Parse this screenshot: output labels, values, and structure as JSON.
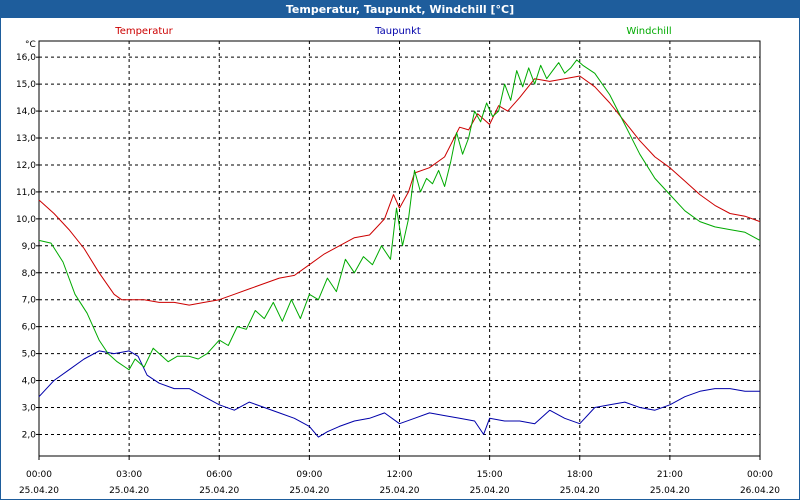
{
  "chart_data": {
    "type": "line",
    "title": "Temperatur, Taupunkt, Windchill [°C]",
    "ylabel": "°C",
    "ylim": [
      1.2,
      16.6
    ],
    "yticks": [
      "2,0",
      "3,0",
      "4,0",
      "5,0",
      "6,0",
      "7,0",
      "8,0",
      "9,0",
      "10,0",
      "11,0",
      "12,0",
      "13,0",
      "14,0",
      "15,0",
      "16,0"
    ],
    "ytick_values": [
      2,
      3,
      4,
      5,
      6,
      7,
      8,
      9,
      10,
      11,
      12,
      13,
      14,
      15,
      16
    ],
    "xlim": [
      0,
      24
    ],
    "xticks": [
      {
        "time": "00:00",
        "date": "25.04.20"
      },
      {
        "time": "03:00",
        "date": "25.04.20"
      },
      {
        "time": "06:00",
        "date": "25.04.20"
      },
      {
        "time": "09:00",
        "date": "25.04.20"
      },
      {
        "time": "12:00",
        "date": "25.04.20"
      },
      {
        "time": "15:00",
        "date": "25.04.20"
      },
      {
        "time": "18:00",
        "date": "25.04.20"
      },
      {
        "time": "21:00",
        "date": "25.04.20"
      },
      {
        "time": "00:00",
        "date": "26.04.20"
      }
    ],
    "xtick_values": [
      0,
      3,
      6,
      9,
      12,
      15,
      18,
      21,
      24
    ],
    "grid": true,
    "series": [
      {
        "name": "Temperatur",
        "color": "#cc0000",
        "x": [
          0,
          0.5,
          1,
          1.5,
          2,
          2.5,
          2.75,
          3,
          3.5,
          4,
          4.5,
          5,
          5.5,
          6,
          6.5,
          7,
          7.5,
          8,
          8.5,
          9,
          9.5,
          10,
          10.5,
          11,
          11.5,
          11.8,
          12,
          12.3,
          12.5,
          13,
          13.5,
          14,
          14.3,
          14.6,
          15,
          15.3,
          15.6,
          16,
          16.5,
          17,
          17.5,
          18,
          18.5,
          19,
          19.5,
          20,
          20.5,
          21,
          21.5,
          22,
          22.5,
          23,
          23.5,
          24
        ],
        "values": [
          10.7,
          10.2,
          9.6,
          8.9,
          8.0,
          7.2,
          7.0,
          7.0,
          7.0,
          6.9,
          6.9,
          6.8,
          6.9,
          7.0,
          7.2,
          7.4,
          7.6,
          7.8,
          7.9,
          8.3,
          8.7,
          9.0,
          9.3,
          9.4,
          10.0,
          10.9,
          10.4,
          11.0,
          11.7,
          11.9,
          12.3,
          13.4,
          13.3,
          13.9,
          13.5,
          14.2,
          14.0,
          14.5,
          15.2,
          15.1,
          15.2,
          15.3,
          14.9,
          14.3,
          13.6,
          12.9,
          12.3,
          11.9,
          11.4,
          10.9,
          10.5,
          10.2,
          10.1,
          9.9
        ]
      },
      {
        "name": "Taupunkt",
        "color": "#0000aa",
        "x": [
          0,
          0.5,
          1,
          1.5,
          2,
          2.5,
          3,
          3.3,
          3.6,
          4,
          4.5,
          5,
          5.5,
          6,
          6.5,
          7,
          7.5,
          8,
          8.5,
          9,
          9.3,
          9.6,
          10,
          10.5,
          11,
          11.5,
          12,
          12.5,
          13,
          13.5,
          14,
          14.5,
          14.8,
          15,
          15.5,
          16,
          16.5,
          17,
          17.5,
          18,
          18.5,
          19,
          19.5,
          20,
          20.5,
          21,
          21.5,
          22,
          22.5,
          23,
          23.5,
          24
        ],
        "values": [
          3.4,
          4.0,
          4.4,
          4.8,
          5.1,
          5.0,
          5.1,
          4.9,
          4.2,
          3.9,
          3.7,
          3.7,
          3.4,
          3.1,
          2.9,
          3.2,
          3.0,
          2.8,
          2.6,
          2.3,
          1.9,
          2.1,
          2.3,
          2.5,
          2.6,
          2.8,
          2.4,
          2.6,
          2.8,
          2.7,
          2.6,
          2.5,
          2.0,
          2.6,
          2.5,
          2.5,
          2.4,
          2.9,
          2.6,
          2.4,
          3.0,
          3.1,
          3.2,
          3.0,
          2.9,
          3.1,
          3.4,
          3.6,
          3.7,
          3.7,
          3.6,
          3.6
        ]
      },
      {
        "name": "Windchill",
        "color": "#00aa00",
        "x": [
          0,
          0.4,
          0.8,
          1.2,
          1.6,
          2,
          2.3,
          2.6,
          3,
          3.2,
          3.5,
          3.8,
          4,
          4.3,
          4.6,
          5,
          5.3,
          5.6,
          6,
          6.3,
          6.6,
          6.9,
          7.2,
          7.5,
          7.8,
          8.1,
          8.4,
          8.7,
          9,
          9.3,
          9.6,
          9.9,
          10.2,
          10.5,
          10.8,
          11.1,
          11.4,
          11.7,
          11.9,
          12.1,
          12.3,
          12.5,
          12.7,
          12.9,
          13.1,
          13.3,
          13.5,
          13.7,
          13.9,
          14.1,
          14.3,
          14.5,
          14.7,
          14.9,
          15.1,
          15.3,
          15.5,
          15.7,
          15.9,
          16.1,
          16.3,
          16.5,
          16.7,
          16.9,
          17.1,
          17.3,
          17.5,
          17.7,
          17.9,
          18.1,
          18.5,
          19,
          19.5,
          20,
          20.5,
          21,
          21.5,
          22,
          22.5,
          23,
          23.5,
          24
        ],
        "values": [
          9.2,
          9.1,
          8.4,
          7.2,
          6.5,
          5.5,
          5.0,
          4.7,
          4.4,
          4.8,
          4.5,
          5.2,
          5.0,
          4.7,
          4.9,
          4.9,
          4.8,
          5.0,
          5.5,
          5.3,
          6.0,
          5.9,
          6.6,
          6.3,
          6.9,
          6.2,
          7.0,
          6.3,
          7.2,
          7.0,
          7.8,
          7.3,
          8.5,
          8.0,
          8.6,
          8.3,
          9.0,
          8.5,
          10.4,
          9.0,
          10.0,
          11.8,
          11.0,
          11.5,
          11.3,
          11.8,
          11.2,
          12.1,
          13.2,
          12.4,
          13.0,
          14.0,
          13.6,
          14.3,
          13.8,
          14.0,
          15.0,
          14.4,
          15.5,
          14.9,
          15.6,
          15.0,
          15.7,
          15.2,
          15.5,
          15.8,
          15.4,
          15.6,
          15.9,
          15.7,
          15.4,
          14.6,
          13.5,
          12.4,
          11.5,
          10.9,
          10.3,
          9.9,
          9.7,
          9.6,
          9.5,
          9.2
        ]
      }
    ]
  }
}
